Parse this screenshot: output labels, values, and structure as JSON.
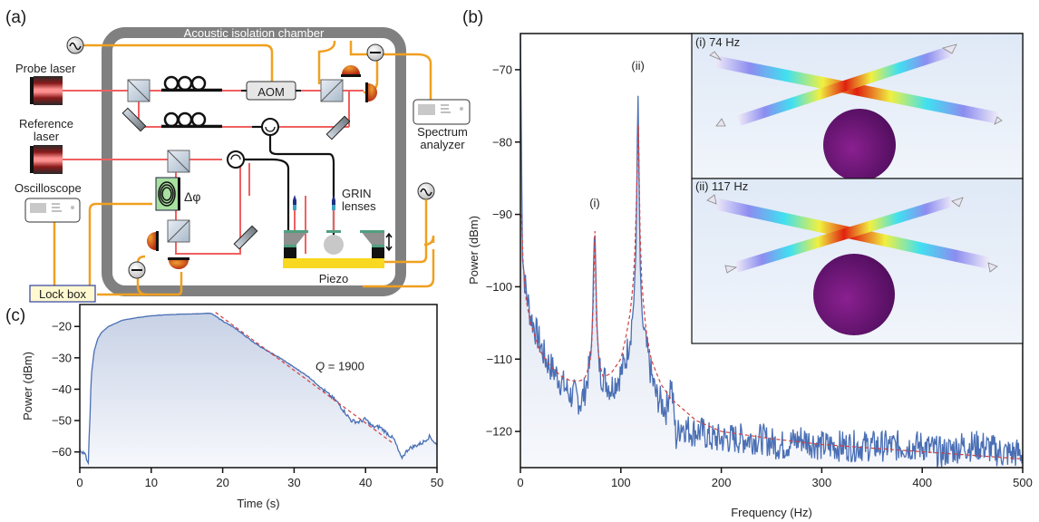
{
  "panel_labels": {
    "a": "(a)",
    "b": "(b)",
    "c": "(c)"
  },
  "diagram": {
    "chamber_label": "Acoustic isolation chamber",
    "probe_laser": "Probe laser",
    "reference_laser": [
      "Reference",
      "laser"
    ],
    "oscilloscope": "Oscilloscope",
    "lock_box": "Lock box",
    "aom": "AOM",
    "phase_shifter": "Δφ",
    "spectrum_analyzer": [
      "Spectrum",
      "analyzer"
    ],
    "grin_lenses": [
      "GRIN",
      "lenses"
    ],
    "piezo": "Piezo",
    "colors": {
      "laser_beam": "#f06060",
      "electrical": "#f0a020",
      "fiber": "#111111",
      "chamber": "#808080",
      "lock_box_fill": "#fff8d0",
      "lock_box_border": "#3040a0",
      "phase_shifter_fill": "#a8e0a0",
      "piezo": "#f8d820"
    }
  },
  "insets": [
    {
      "label": "(i) 74 Hz"
    },
    {
      "label": "(ii) 117 Hz"
    }
  ],
  "chart_data": [
    {
      "id": "b",
      "type": "line",
      "title": "",
      "xlabel": "Frequency (Hz)",
      "ylabel": "Power (dBm)",
      "xlim": [
        0,
        500
      ],
      "ylim": [
        -125,
        -65
      ],
      "xticks": [
        0,
        100,
        200,
        300,
        400,
        500
      ],
      "yticks": [
        -120,
        -110,
        -100,
        -90,
        -80,
        -70
      ],
      "grid": false,
      "annotations": [
        {
          "text": "(i)",
          "x": 74,
          "y": -89
        },
        {
          "text": "(ii)",
          "x": 117,
          "y": -70
        }
      ],
      "series": [
        {
          "name": "measured spectrum",
          "style": "solid",
          "color": "#4a6fb5",
          "x": [
            0,
            2,
            5,
            10,
            15,
            20,
            25,
            30,
            35,
            40,
            45,
            50,
            55,
            60,
            65,
            70,
            72,
            73,
            74,
            75,
            76,
            78,
            80,
            85,
            90,
            95,
            100,
            105,
            110,
            113,
            115,
            116,
            117,
            118,
            119,
            121,
            125,
            130,
            135,
            140,
            145,
            150,
            155,
            160,
            170,
            180,
            190,
            200,
            220,
            240,
            260,
            280,
            300,
            320,
            340,
            360,
            380,
            400,
            420,
            440,
            460,
            480,
            500
          ],
          "y": [
            -64,
            -96,
            -100,
            -104,
            -106,
            -108,
            -110,
            -111,
            -112,
            -113,
            -114,
            -115,
            -115,
            -116,
            -114,
            -110,
            -104,
            -96,
            -91,
            -97,
            -105,
            -110,
            -112,
            -113,
            -114,
            -113,
            -112,
            -110,
            -106,
            -102,
            -95,
            -85,
            -72,
            -84,
            -96,
            -104,
            -108,
            -112,
            -115,
            -116,
            -117,
            -113,
            -121,
            -119,
            -120,
            -120,
            -121,
            -121,
            -121,
            -121,
            -122,
            -121,
            -122,
            -122,
            -122,
            -122,
            -122,
            -122,
            -123,
            -122,
            -122,
            -123,
            -123
          ]
        },
        {
          "name": "Lorentzian fit",
          "style": "dashed",
          "color": "#d04040",
          "x": [
            1,
            3,
            6,
            10,
            15,
            20,
            30,
            40,
            50,
            60,
            65,
            70,
            72,
            73,
            74,
            75,
            76,
            78,
            82,
            90,
            100,
            105,
            110,
            113,
            115,
            116,
            117,
            118,
            119,
            121,
            125,
            130,
            140,
            150,
            175,
            200,
            250,
            300,
            350,
            400,
            450,
            500
          ],
          "y": [
            -90,
            -98,
            -102,
            -105,
            -107,
            -109,
            -111,
            -112.3,
            -113,
            -113,
            -112.5,
            -110,
            -106,
            -98,
            -91,
            -98,
            -106,
            -110,
            -112.5,
            -112,
            -110,
            -107,
            -103,
            -98,
            -92,
            -85,
            -72,
            -85,
            -92,
            -100,
            -106,
            -110,
            -113.5,
            -115.5,
            -118.5,
            -120,
            -121,
            -121.8,
            -122.3,
            -122.8,
            -123.3,
            -123.8
          ]
        }
      ]
    },
    {
      "id": "c",
      "type": "line",
      "title": "",
      "xlabel": "Time (s)",
      "ylabel": "Power (dBm)",
      "xlim": [
        0,
        50
      ],
      "ylim": [
        -65,
        -13
      ],
      "xticks": [
        0,
        10,
        20,
        30,
        40,
        50
      ],
      "yticks": [
        -60,
        -50,
        -40,
        -30,
        -20
      ],
      "grid": false,
      "annotations": [
        {
          "text": "Q = 1900",
          "x": 33,
          "y": -34
        }
      ],
      "series": [
        {
          "name": "ringdown",
          "style": "solid",
          "color": "#4a6fb5",
          "x": [
            0,
            0.3,
            0.6,
            0.9,
            1.2,
            1.4,
            1.6,
            2,
            2.5,
            3,
            4,
            5,
            6,
            8,
            10,
            12,
            14,
            16,
            18,
            18.5,
            20,
            22,
            24,
            26,
            28,
            30,
            32,
            34,
            36,
            37,
            38,
            39,
            40,
            41,
            42,
            43,
            44,
            45,
            46,
            47,
            48,
            49,
            50
          ],
          "y": [
            -59,
            -61,
            -60,
            -62,
            -63,
            -50,
            -36,
            -28,
            -24,
            -22,
            -20,
            -19,
            -18,
            -17.2,
            -16.6,
            -16.3,
            -16.1,
            -16,
            -15.8,
            -16,
            -18.2,
            -21,
            -24.5,
            -27.5,
            -30,
            -33,
            -36,
            -40,
            -44,
            -47,
            -50,
            -50.5,
            -49.5,
            -52,
            -52,
            -54,
            -56,
            -62,
            -59,
            -58,
            -57,
            -55,
            -58
          ]
        },
        {
          "name": "exponential fit",
          "style": "dashed",
          "color": "#d04040",
          "x": [
            19,
            44
          ],
          "y": [
            -15.5,
            -57.5
          ]
        }
      ]
    }
  ]
}
